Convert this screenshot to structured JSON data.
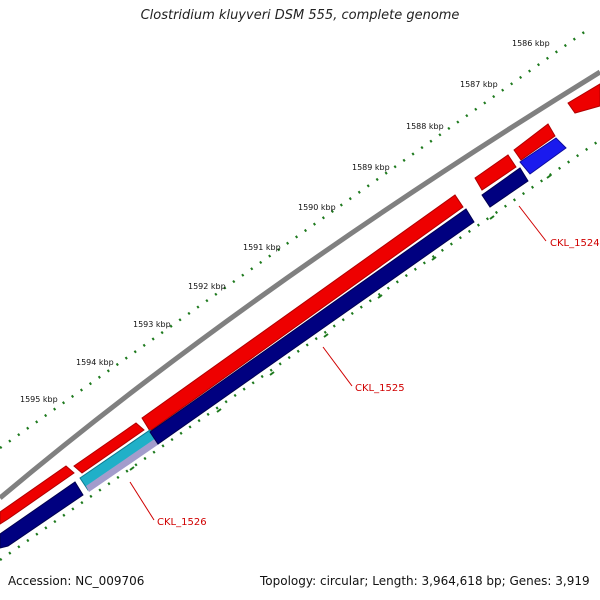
{
  "title": "Clostridium kluyveri DSM 555, complete genome",
  "footer": {
    "accession": "Accession: NC_009706",
    "summary": "Topology: circular; Length: 3,964,618 bp; Genes: 3,919"
  },
  "scale_labels": [
    "1586 kbp",
    "1587 kbp",
    "1588 kbp",
    "1589 kbp",
    "1590 kbp",
    "1591 kbp",
    "1592 kbp",
    "1593 kbp",
    "1594 kbp",
    "1595 kbp"
  ],
  "gene_labels": {
    "ckl_1524": "CKL_1524",
    "ckl_1525": "CKL_1525",
    "ckl_1526": "CKL_1526"
  },
  "colors": {
    "backbone": "#808080",
    "forward_gene": "#ee0000",
    "reverse_gene": "#000080",
    "reverse_gene_alt": "#1a1aee",
    "feature_cyan": "#20b0c8",
    "feature_purple": "#a39ccc",
    "scale_ticks": "#1e7a1e",
    "label_line": "#d00000"
  }
}
